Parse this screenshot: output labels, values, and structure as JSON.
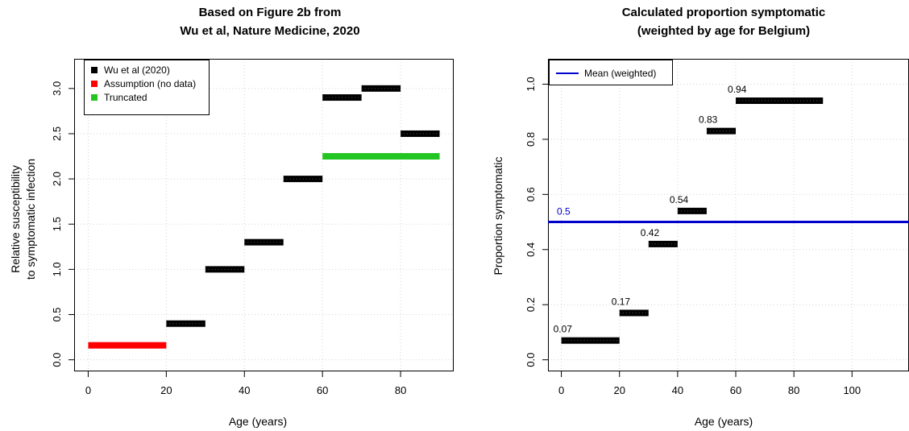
{
  "chart_data": [
    {
      "type": "segments",
      "title": [
        "Based on Figure 2b from",
        "Wu et al, Nature Medicine, 2020"
      ],
      "xlabel": "Age (years)",
      "ylabel": [
        "Relative susceptibility",
        "to symptomatic infection"
      ],
      "xlim": [
        0,
        90
      ],
      "ylim": [
        0,
        3.2
      ],
      "x_ticks": [
        0,
        20,
        40,
        60,
        80
      ],
      "y_ticks": [
        0.0,
        0.5,
        1.0,
        1.5,
        2.0,
        2.5,
        3.0
      ],
      "y_tick_labels": [
        "0.0",
        "0.5",
        "1.0",
        "1.5",
        "2.0",
        "2.5",
        "3.0"
      ],
      "grid": true,
      "legend_position": "top-left",
      "legend": [
        {
          "label": "Wu et al (2020)",
          "color": "#000000"
        },
        {
          "label": "Assumption (no data)",
          "color": "#ff0000"
        },
        {
          "label": "Truncated",
          "color": "#22c522"
        }
      ],
      "series": [
        {
          "name": "Assumption (no data)",
          "color": "#ff0000",
          "segments": [
            {
              "x0": 0,
              "x1": 20,
              "y": 0.16
            }
          ]
        },
        {
          "name": "Wu et al (2020)",
          "color": "#000000",
          "segments": [
            {
              "x0": 20,
              "x1": 30,
              "y": 0.4
            },
            {
              "x0": 30,
              "x1": 40,
              "y": 1.0
            },
            {
              "x0": 40,
              "x1": 50,
              "y": 1.3
            },
            {
              "x0": 50,
              "x1": 60,
              "y": 2.0
            },
            {
              "x0": 60,
              "x1": 70,
              "y": 2.9
            },
            {
              "x0": 70,
              "x1": 80,
              "y": 3.0
            },
            {
              "x0": 80,
              "x1": 90,
              "y": 2.5
            }
          ]
        },
        {
          "name": "Truncated",
          "color": "#22c522",
          "segments": [
            {
              "x0": 60,
              "x1": 90,
              "y": 2.25
            }
          ]
        }
      ]
    },
    {
      "type": "segments",
      "title": [
        "Calculated proportion symptomatic",
        "(weighted by age for Belgium)"
      ],
      "xlabel": "Age (years)",
      "ylabel": [
        "Proportion symptomatic"
      ],
      "xlim": [
        0,
        115
      ],
      "ylim": [
        0,
        1.05
      ],
      "x_ticks": [
        0,
        20,
        40,
        60,
        80,
        100
      ],
      "y_ticks": [
        0.0,
        0.2,
        0.4,
        0.6,
        0.8,
        1.0
      ],
      "y_tick_labels": [
        "0.0",
        "0.2",
        "0.4",
        "0.6",
        "0.8",
        "1.0"
      ],
      "grid": true,
      "legend_position": "top-left",
      "legend": [
        {
          "label": "Mean (weighted)",
          "color": "#0000cc"
        }
      ],
      "mean_line": {
        "y": 0.5,
        "label": "0.5",
        "color": "#0000cc"
      },
      "series": [
        {
          "name": "Proportion symptomatic",
          "color": "#000000",
          "segments": [
            {
              "x0": 0,
              "x1": 20,
              "y": 0.07,
              "label": "0.07"
            },
            {
              "x0": 20,
              "x1": 30,
              "y": 0.17,
              "label": "0.17"
            },
            {
              "x0": 30,
              "x1": 40,
              "y": 0.42,
              "label": "0.42"
            },
            {
              "x0": 40,
              "x1": 50,
              "y": 0.54,
              "label": "0.54"
            },
            {
              "x0": 50,
              "x1": 60,
              "y": 0.83,
              "label": "0.83"
            },
            {
              "x0": 60,
              "x1": 90,
              "y": 0.94,
              "label": "0.94"
            }
          ]
        }
      ]
    }
  ]
}
